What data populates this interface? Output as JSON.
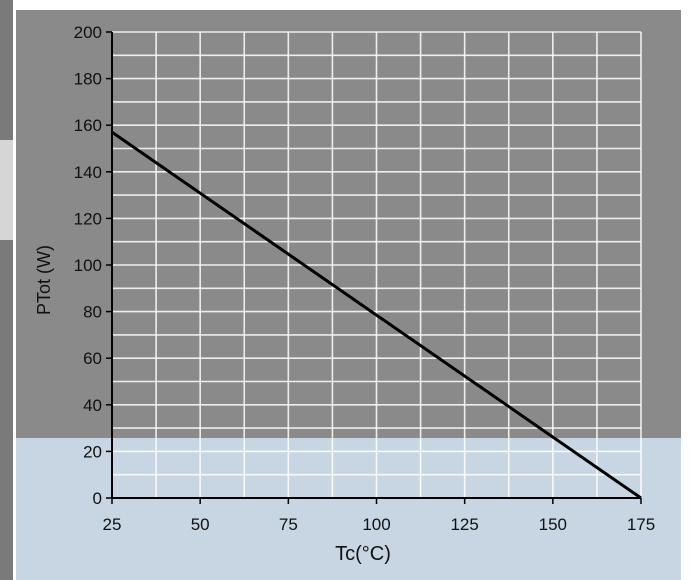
{
  "chart_data": {
    "type": "line",
    "title": "",
    "xlabel": "Tc(°C)",
    "ylabel": "PTot (W)",
    "xlim": [
      25,
      175
    ],
    "ylim": [
      0,
      200
    ],
    "x_ticks": [
      25,
      50,
      75,
      100,
      125,
      150,
      175
    ],
    "y_ticks": [
      0,
      20,
      40,
      60,
      80,
      100,
      120,
      140,
      160,
      180,
      200
    ],
    "grid": true,
    "series": [
      {
        "x": [
          25,
          175
        ],
        "y": [
          157,
          0
        ]
      }
    ]
  },
  "colors": {
    "line": "#000000",
    "grid": "#ffffff",
    "background_top": "#8a8a8a",
    "background_bottom": "#c7d6e2"
  }
}
